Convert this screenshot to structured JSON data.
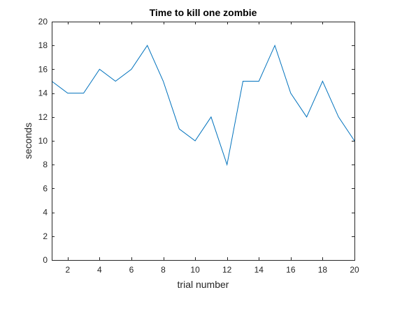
{
  "chart_data": {
    "type": "line",
    "title": "Time to kill one zombie",
    "xlabel": "trial number",
    "ylabel": "seconds",
    "xlim": [
      1,
      20
    ],
    "ylim": [
      0,
      20
    ],
    "x_ticks": [
      2,
      4,
      6,
      8,
      10,
      12,
      14,
      16,
      18,
      20
    ],
    "y_ticks": [
      0,
      2,
      4,
      6,
      8,
      10,
      12,
      14,
      16,
      18,
      20
    ],
    "grid": false,
    "box": true,
    "line_color": "#0072BD",
    "series": [
      {
        "x": [
          1,
          2,
          3,
          4,
          5,
          6,
          7,
          8,
          9,
          10,
          11,
          12,
          13,
          14,
          15,
          16,
          17,
          18,
          19,
          20
        ],
        "values": [
          15,
          14,
          14,
          16,
          15,
          16,
          18,
          15,
          11,
          10,
          12,
          8,
          15,
          15,
          18,
          14,
          12,
          15,
          12,
          10
        ]
      }
    ]
  }
}
